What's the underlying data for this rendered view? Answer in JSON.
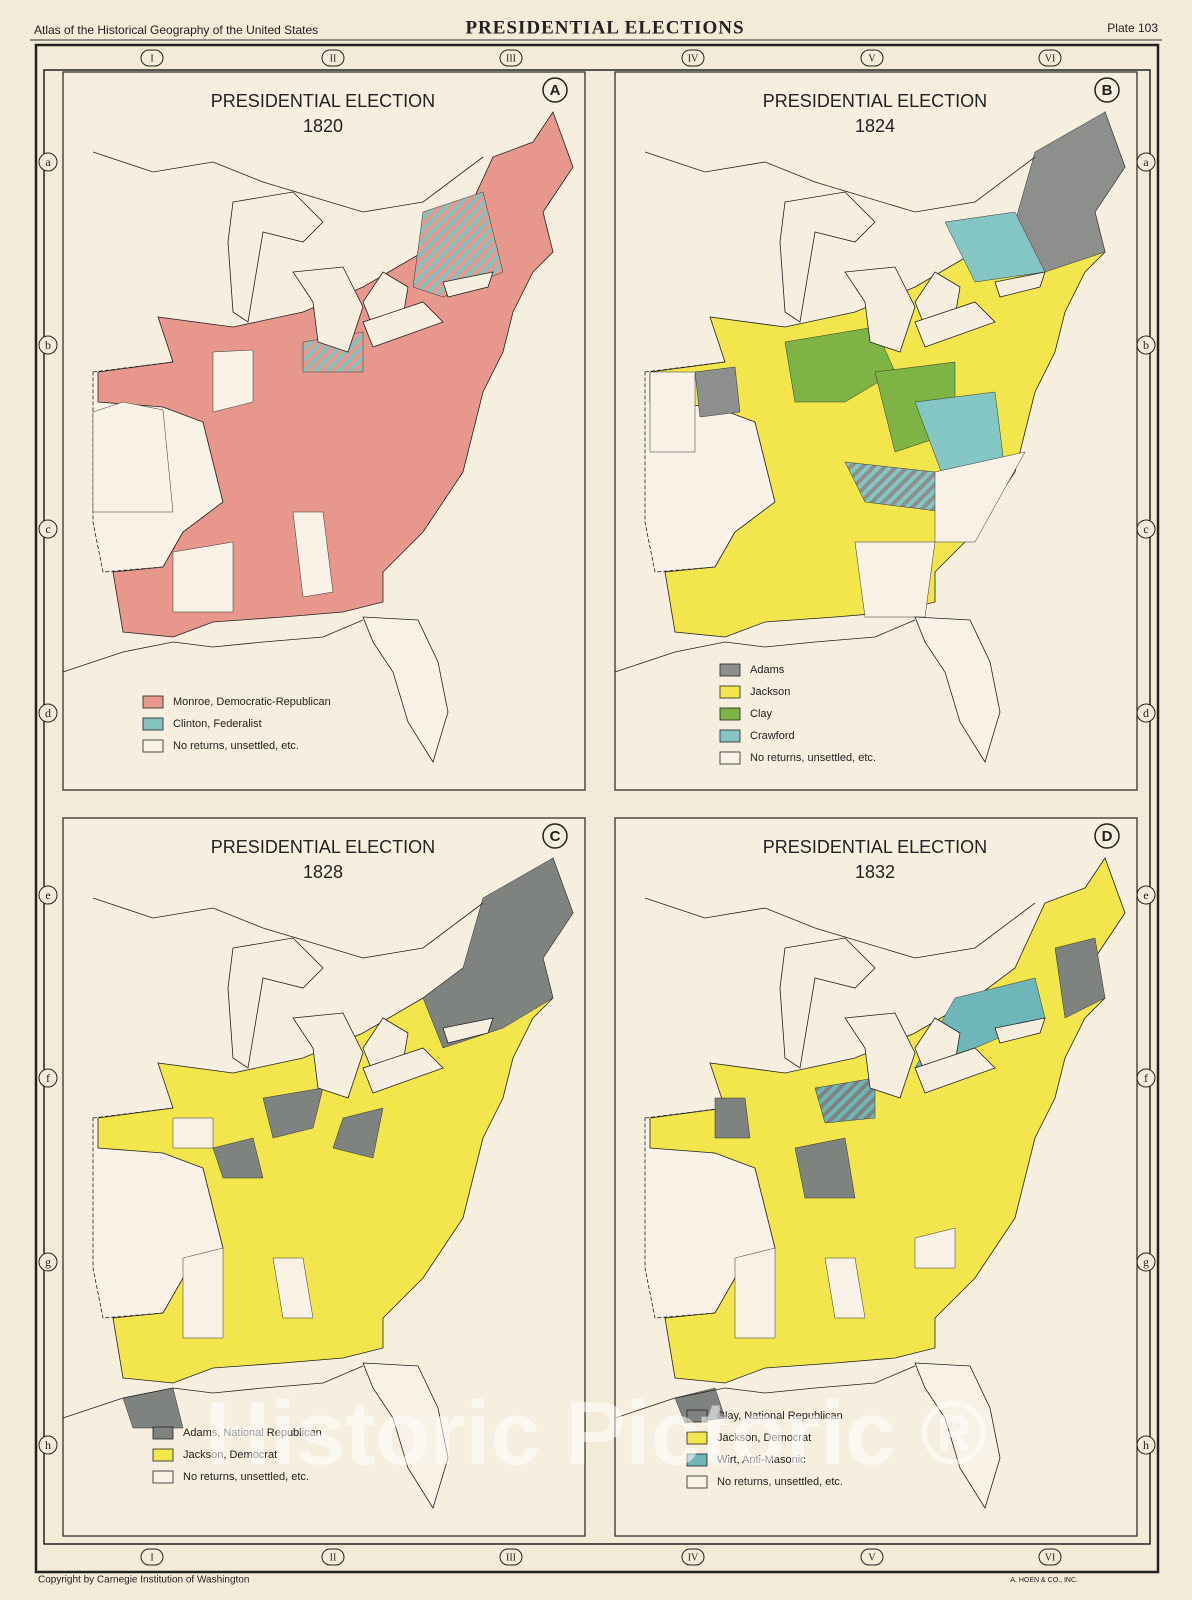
{
  "header": {
    "left": "Atlas of the Historical Geography of the United States",
    "title": "PRESIDENTIAL ELECTIONS",
    "right": "Plate 103"
  },
  "columns": [
    "I",
    "II",
    "III",
    "IV",
    "V",
    "VI"
  ],
  "rows": [
    "a",
    "b",
    "c",
    "d",
    "e",
    "f",
    "g",
    "h"
  ],
  "panels": [
    {
      "letter": "A",
      "title": "PRESIDENTIAL ELECTION",
      "year": "1820",
      "legend": [
        {
          "label": "Monroe, Democratic-Republican",
          "color": "#e8978d"
        },
        {
          "label": "Clinton, Federalist",
          "color": "#86c2bd"
        },
        {
          "label": "No returns, unsettled, etc.",
          "color": "#f8f2e6"
        }
      ]
    },
    {
      "letter": "B",
      "title": "PRESIDENTIAL ELECTION",
      "year": "1824",
      "legend": [
        {
          "label": "Adams",
          "color": "#8c8f8b"
        },
        {
          "label": "Jackson",
          "color": "#f2e64c"
        },
        {
          "label": "Clay",
          "color": "#7db443"
        },
        {
          "label": "Crawford",
          "color": "#84c6c4"
        },
        {
          "label": "No returns, unsettled, etc.",
          "color": "#f8f2e6"
        }
      ]
    },
    {
      "letter": "C",
      "title": "PRESIDENTIAL ELECTION",
      "year": "1828",
      "legend": [
        {
          "label": "Adams, National Republican",
          "color": "#7e837f"
        },
        {
          "label": "Jackson, Democrat",
          "color": "#f2e64c"
        },
        {
          "label": "No returns, unsettled, etc.",
          "color": "#f8f2e6"
        }
      ]
    },
    {
      "letter": "D",
      "title": "PRESIDENTIAL ELECTION",
      "year": "1832",
      "legend": [
        {
          "label": "Clay, National Republican",
          "color": "#7e837f"
        },
        {
          "label": "Jackson, Democrat",
          "color": "#f2e64c"
        },
        {
          "label": "Wirt, Anti-Masonic",
          "color": "#6fb6b8"
        },
        {
          "label": "No returns, unsettled, etc.",
          "color": "#f8f2e6"
        }
      ]
    }
  ],
  "footer": {
    "left": "Copyright by Carnegie Institution of Washington",
    "right": "A. HOEN & CO., INC."
  },
  "watermark": "Historic Pictoric ®"
}
